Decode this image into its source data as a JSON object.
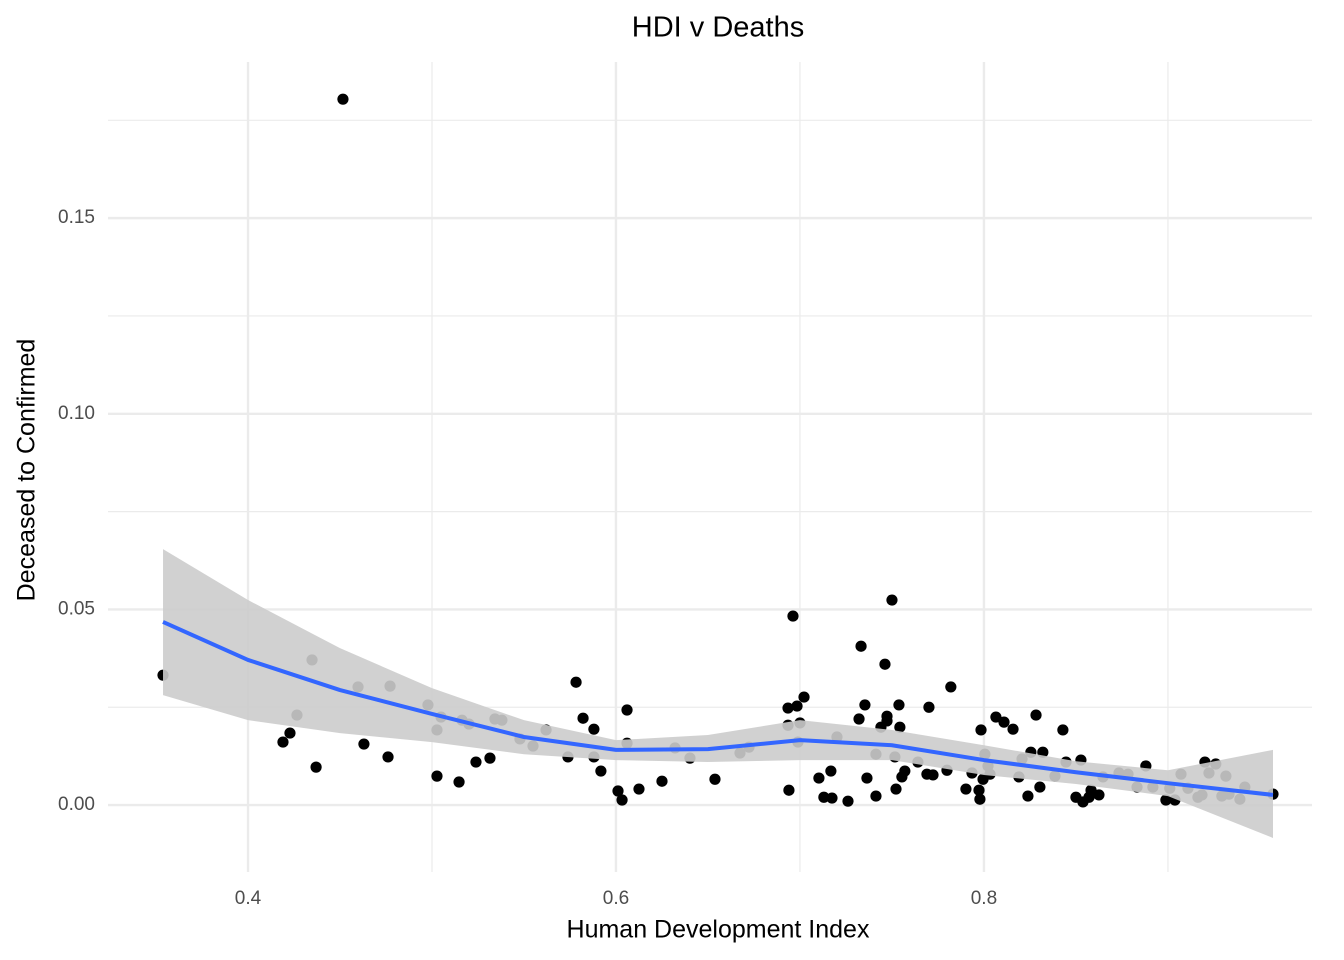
{
  "chart_data": {
    "type": "scatter",
    "title": "HDI v Deaths",
    "xlabel": "Human Development Index",
    "ylabel": "Deceased to Confirmed",
    "xlim": [
      0.3239,
      0.9783
    ],
    "ylim": [
      -0.0171,
      0.1899
    ],
    "xticks": [
      0.4,
      0.6,
      0.8
    ],
    "yticks": [
      {
        "value": 0,
        "label": "0.00"
      },
      {
        "value": 0.05,
        "label": "0.05"
      },
      {
        "value": 0.1,
        "label": "0.10"
      },
      {
        "value": 0.15,
        "label": "0.15"
      }
    ],
    "xminor": [
      0.5,
      0.7,
      0.9
    ],
    "yminor": [
      0.025,
      0.075,
      0.125,
      0.175
    ],
    "grid": true,
    "series": [
      {
        "color": "#000000",
        "x": [
          0.3538,
          0.4516,
          0.419,
          0.4228,
          0.4266,
          0.4348,
          0.437,
          0.4598,
          0.463,
          0.4761,
          0.4772,
          0.4978,
          0.5027,
          0.5027,
          0.5049,
          0.5147,
          0.5163,
          0.5201,
          0.5239,
          0.5315,
          0.5342,
          0.538,
          0.5478,
          0.5549,
          0.562,
          0.5739,
          0.5783,
          0.5821,
          0.588,
          0.588,
          0.5918,
          0.6011,
          0.6033,
          0.606,
          0.606,
          0.6125,
          0.625,
          0.6321,
          0.6402,
          0.6538,
          0.6674,
          0.6723,
          0.694,
          0.6935,
          0.6935,
          0.6962,
          0.6984,
          0.6989,
          0.7,
          0.7022,
          0.7103,
          0.713,
          0.7168,
          0.7174,
          0.7201,
          0.7261,
          0.7321,
          0.7332,
          0.7353,
          0.7364,
          0.7413,
          0.7413,
          0.744,
          0.7462,
          0.7473,
          0.7473,
          0.75,
          0.7516,
          0.7522,
          0.7538,
          0.7543,
          0.7554,
          0.757,
          0.7641,
          0.769,
          0.7701,
          0.7723,
          0.7799,
          0.782,
          0.7902,
          0.7935,
          0.7973,
          0.7978,
          0.7984,
          0.7995,
          0.8005,
          0.8022,
          0.8033,
          0.8065,
          0.8109,
          0.8158,
          0.819,
          0.8207,
          0.8239,
          0.8255,
          0.8283,
          0.8304,
          0.832,
          0.8386,
          0.8429,
          0.8446,
          0.85,
          0.8527,
          0.8538,
          0.8571,
          0.8582,
          0.8625,
          0.8647,
          0.8734,
          0.8783,
          0.8832,
          0.888,
          0.8918,
          0.8989,
          0.901,
          0.9038,
          0.9071,
          0.9109,
          0.9163,
          0.9185,
          0.9201,
          0.9223,
          0.926,
          0.9293,
          0.9315,
          0.9332,
          0.9391,
          0.9418,
          0.9571
        ],
        "values": [
          0.0332,
          0.1804,
          0.0161,
          0.0184,
          0.023,
          0.0371,
          0.0097,
          0.0302,
          0.0156,
          0.0123,
          0.0304,
          0.0256,
          0.0192,
          0.0074,
          0.0225,
          0.0059,
          0.0217,
          0.0207,
          0.011,
          0.012,
          0.022,
          0.0217,
          0.0169,
          0.0151,
          0.0192,
          0.0123,
          0.0314,
          0.0222,
          0.0194,
          0.0123,
          0.0087,
          0.0036,
          0.0013,
          0.0243,
          0.0158,
          0.0041,
          0.0061,
          0.0146,
          0.012,
          0.0066,
          0.0133,
          0.0148,
          0.0038,
          0.0248,
          0.0204,
          0.0483,
          0.0253,
          0.0161,
          0.021,
          0.0276,
          0.0069,
          0.002,
          0.0087,
          0.0018,
          0.0174,
          0.001,
          0.022,
          0.0406,
          0.0256,
          0.0069,
          0.013,
          0.0023,
          0.0199,
          0.036,
          0.0227,
          0.0215,
          0.0524,
          0.0123,
          0.0041,
          0.0256,
          0.0199,
          0.0072,
          0.0087,
          0.011,
          0.0079,
          0.025,
          0.0077,
          0.0089,
          0.0302,
          0.0041,
          0.0082,
          0.0038,
          0.0015,
          0.0192,
          0.0066,
          0.013,
          0.01,
          0.0079,
          0.0225,
          0.0212,
          0.0194,
          0.0072,
          0.0118,
          0.0023,
          0.0135,
          0.023,
          0.0046,
          0.0135,
          0.0074,
          0.0192,
          0.011,
          0.002,
          0.0115,
          0.0008,
          0.002,
          0.0038,
          0.0026,
          0.0072,
          0.0082,
          0.0079,
          0.0046,
          0.01,
          0.0046,
          0.0013,
          0.0043,
          0.0013,
          0.0079,
          0.0043,
          0.002,
          0.0026,
          0.011,
          0.0082,
          0.0105,
          0.0023,
          0.0074,
          0.0028,
          0.0015,
          0.0046,
          0.0028
        ]
      }
    ],
    "smooth": {
      "color": "#3366ff",
      "band_color": "#cccccc",
      "x": [
        0.3538,
        0.4,
        0.45,
        0.5,
        0.55,
        0.6,
        0.65,
        0.7,
        0.75,
        0.8,
        0.85,
        0.9,
        0.9571
      ],
      "values": [
        0.0468,
        0.0371,
        0.0294,
        0.0233,
        0.0174,
        0.0141,
        0.0143,
        0.0166,
        0.0153,
        0.0115,
        0.0084,
        0.0056,
        0.0026
      ],
      "upper": [
        0.0654,
        0.0524,
        0.0401,
        0.0299,
        0.0217,
        0.0166,
        0.0179,
        0.0217,
        0.0192,
        0.0153,
        0.0112,
        0.0089,
        0.0141
      ],
      "lower": [
        0.0281,
        0.0217,
        0.0184,
        0.0161,
        0.013,
        0.0115,
        0.011,
        0.0115,
        0.0115,
        0.0077,
        0.0054,
        0.0023,
        -0.0084
      ]
    }
  }
}
